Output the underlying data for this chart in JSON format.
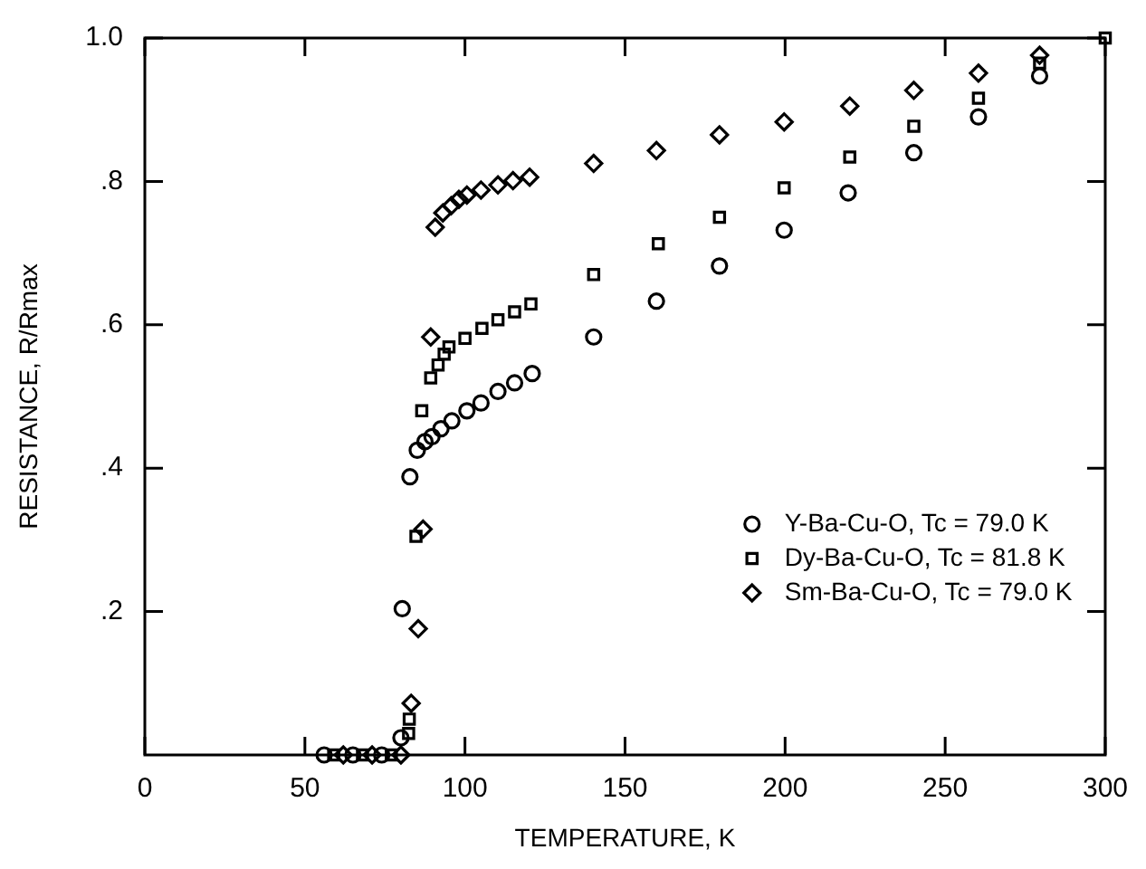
{
  "chart_data": {
    "type": "scatter",
    "xlabel": "TEMPERATURE, K",
    "ylabel": "RESISTANCE, R/Rmax",
    "xlim": [
      0,
      300
    ],
    "xticks": [
      0,
      50,
      100,
      150,
      200,
      250,
      300
    ],
    "ylim": [
      0,
      1
    ],
    "yticks": [
      {
        "value": 0.2,
        "label": ".2"
      },
      {
        "value": 0.4,
        "label": ".4"
      },
      {
        "value": 0.6,
        "label": ".6"
      },
      {
        "value": 0.8,
        "label": ".8"
      },
      {
        "value": 1,
        "label": "1.0"
      }
    ],
    "grid": false,
    "legend": "bottom right",
    "series": [
      {
        "name": "Y-Ba-Cu-O, Tc = 79.0 K",
        "color": "#000000",
        "marker": "circle",
        "x": [
          56,
          65,
          74,
          80,
          80.4,
          82.8,
          85.1,
          87.5,
          89.7,
          92.5,
          95.9,
          100.6,
          105,
          110.3,
          115.5,
          121,
          140.2,
          159.8,
          179.5,
          199.7,
          219.7,
          240.2,
          260.4,
          279.5
        ],
        "values": [
          0,
          0,
          0,
          0.024,
          0.204,
          0.388,
          0.425,
          0.437,
          0.444,
          0.455,
          0.466,
          0.48,
          0.491,
          0.507,
          0.519,
          0.532,
          0.583,
          0.633,
          0.682,
          0.732,
          0.784,
          0.84,
          0.89,
          0.947
        ]
      },
      {
        "name": "Dy-Ba-Cu-O, Tc = 81.8 K",
        "color": "#000000",
        "marker": "square",
        "x": [
          59,
          68,
          77,
          82.4,
          82.6,
          84.7,
          86.5,
          89.3,
          91.6,
          93.5,
          95,
          100,
          105.3,
          110.3,
          115.5,
          120.6,
          140.2,
          160.4,
          179.5,
          199.7,
          220.2,
          240.2,
          260.4,
          279.5,
          300
        ],
        "values": [
          0,
          0,
          0,
          0.03,
          0.05,
          0.305,
          0.48,
          0.526,
          0.544,
          0.559,
          0.569,
          0.581,
          0.595,
          0.607,
          0.618,
          0.629,
          0.67,
          0.713,
          0.75,
          0.791,
          0.834,
          0.877,
          0.916,
          0.965,
          1
        ]
      },
      {
        "name": "Sm-Ba-Cu-O, Tc = 79.0 K",
        "color": "#000000",
        "marker": "diamond",
        "x": [
          62,
          71,
          80,
          83.2,
          85.4,
          86.9,
          89.3,
          90.7,
          93.1,
          95.7,
          98.1,
          100.6,
          105,
          110.3,
          115,
          120.2,
          140.2,
          159.8,
          179.5,
          199.7,
          220.2,
          240.2,
          260.4,
          279.5
        ],
        "values": [
          0,
          0,
          0,
          0.072,
          0.176,
          0.315,
          0.583,
          0.736,
          0.756,
          0.766,
          0.775,
          0.781,
          0.788,
          0.795,
          0.801,
          0.806,
          0.825,
          0.843,
          0.865,
          0.883,
          0.905,
          0.927,
          0.951,
          0.976
        ]
      }
    ]
  }
}
